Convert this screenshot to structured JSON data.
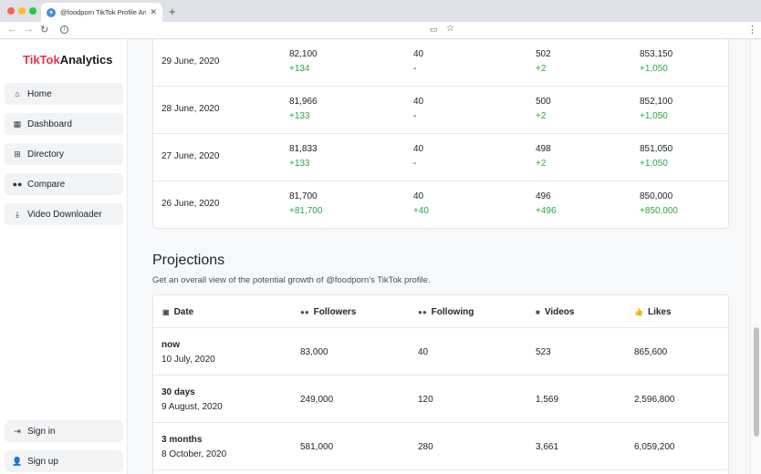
{
  "browser": {
    "tab_title": "@foodporn TikTok Profile Analy",
    "tab_close": "✕",
    "new_tab": "+",
    "icons": [
      "back-icon",
      "forward-icon",
      "reload-icon",
      "info-icon",
      "cast-icon",
      "star-icon",
      "menu-icon"
    ]
  },
  "sidebar": {
    "brand_part1": "TikTok",
    "brand_part2": "Analytics",
    "items": [
      {
        "label": "Home",
        "icon": "home-icon"
      },
      {
        "label": "Dashboard",
        "icon": "grid-icon"
      },
      {
        "label": "Directory",
        "icon": "sitemap-icon"
      },
      {
        "label": "Compare",
        "icon": "users-icon"
      },
      {
        "label": "Video Downloader",
        "icon": "download-icon"
      }
    ],
    "bottom_items": [
      {
        "label": "Sign in",
        "icon": "sign-in-icon"
      },
      {
        "label": "Sign up",
        "icon": "user-plus-icon"
      }
    ]
  },
  "history": {
    "rows": [
      {
        "date": "29 June, 2020",
        "followers": "82,100",
        "followers_delta": "+134",
        "following": "40",
        "following_delta": "-",
        "videos": "502",
        "videos_delta": "+2",
        "likes": "853,150",
        "likes_delta": "+1,050"
      },
      {
        "date": "28 June, 2020",
        "followers": "81,966",
        "followers_delta": "+133",
        "following": "40",
        "following_delta": "-",
        "videos": "500",
        "videos_delta": "+2",
        "likes": "852,100",
        "likes_delta": "+1,050"
      },
      {
        "date": "27 June, 2020",
        "followers": "81,833",
        "followers_delta": "+133",
        "following": "40",
        "following_delta": "-",
        "videos": "498",
        "videos_delta": "+2",
        "likes": "851,050",
        "likes_delta": "+1,050"
      },
      {
        "date": "26 June, 2020",
        "followers": "81,700",
        "followers_delta": "+81,700",
        "following": "40",
        "following_delta": "+40",
        "videos": "496",
        "videos_delta": "+496",
        "likes": "850,000",
        "likes_delta": "+850,000"
      }
    ]
  },
  "projections": {
    "title": "Projections",
    "subtitle": "Get an overall view of the potential growth of @foodporn's TikTok profile.",
    "headers": {
      "date": "Date",
      "followers": "Followers",
      "following": "Following",
      "videos": "Videos",
      "likes": "Likes"
    },
    "rows": [
      {
        "period": "now",
        "date": "10 July, 2020",
        "followers": "83,000",
        "following": "40",
        "videos": "523",
        "likes": "865,600"
      },
      {
        "period": "30 days",
        "date": "9 August, 2020",
        "followers": "249,000",
        "following": "120",
        "videos": "1,569",
        "likes": "2,596,800"
      },
      {
        "period": "3 months",
        "date": "8 October, 2020",
        "followers": "581,000",
        "following": "280",
        "videos": "3,661",
        "likes": "6,059,200"
      }
    ]
  },
  "colors": {
    "brand_red": "#e8344e",
    "positive_green": "#28a745"
  }
}
